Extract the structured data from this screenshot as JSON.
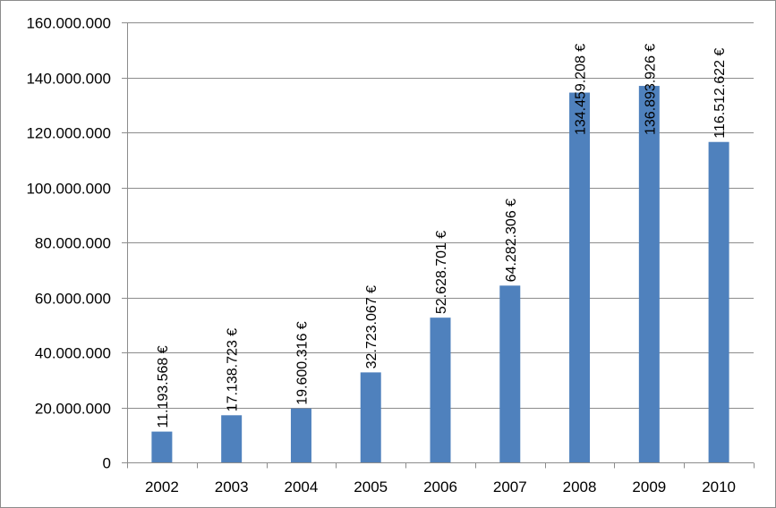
{
  "chart_data": {
    "type": "bar",
    "categories": [
      "2002",
      "2003",
      "2004",
      "2005",
      "2006",
      "2007",
      "2008",
      "2009",
      "2010"
    ],
    "values": [
      11193568,
      17138723,
      19600316,
      32723067,
      52628701,
      64282306,
      134459208,
      136893926,
      116512622
    ],
    "data_labels": [
      "11.193.568 €",
      "17.138.723 €",
      "19.600.316 €",
      "32.723.067 €",
      "52.628.701 €",
      "64.282.306 €",
      "134.459.208 €",
      "136.893.926 €",
      "116.512.622 €"
    ],
    "y_ticks": [
      0,
      20000000,
      40000000,
      60000000,
      80000000,
      100000000,
      120000000,
      140000000,
      160000000
    ],
    "y_tick_labels": [
      "0",
      "20.000.000",
      "40.000.000",
      "60.000.000",
      "80.000.000",
      "100.000.000",
      "120.000.000",
      "140.000.000",
      "160.000.000"
    ],
    "ylim": [
      0,
      160000000
    ],
    "title": "",
    "xlabel": "",
    "ylabel": "",
    "grid": true,
    "legend": "none",
    "colors": {
      "bar": "#4f81bd",
      "grid": "#8c8c8c",
      "axis": "#8c8c8c"
    }
  }
}
